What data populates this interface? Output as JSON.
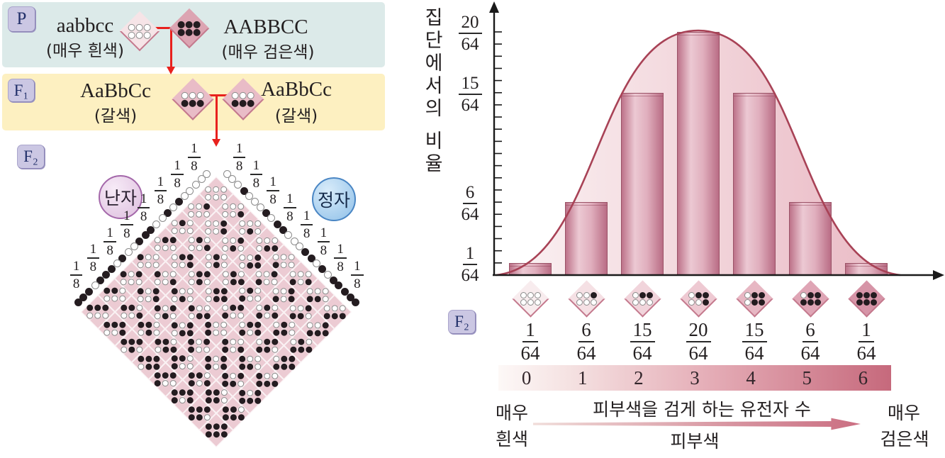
{
  "colors": {
    "band_p": "#dceae9",
    "band_f1": "#fdf0c1",
    "badge_bg": "#cbc7e3",
    "badge_text": "#22306a",
    "red": "#e8211d",
    "cell_bg": "#eccbd3",
    "diamond_edge": "#c4798d",
    "curve_stroke": "#a84256",
    "axis": "#1a1a1a"
  },
  "pedigree": {
    "p_label": "P",
    "f1_label": "F₁",
    "f2_label": "F₂",
    "p": {
      "left_genotype": "aabbcc",
      "left_phenotype": "(매우 흰색)",
      "left_icon_pattern": "000000",
      "left_icon_color": "#f6e4e7",
      "right_genotype": "AABBCC",
      "right_phenotype": "(매우 검은색)",
      "right_icon_pattern": "111111",
      "right_icon_color": "#dca4b2"
    },
    "f1": {
      "left_genotype": "AaBbCc",
      "left_phenotype": "(갈색)",
      "right_genotype": "AaBbCc",
      "right_phenotype": "(갈색)",
      "icon_pattern": "000111",
      "icon_color": "#e9bcc7"
    },
    "egg_label": "난자",
    "sperm_label": "정자",
    "gamete_fraction": {
      "num": "1",
      "den": "8"
    },
    "gametes": [
      [
        0,
        0,
        0
      ],
      [
        0,
        0,
        1
      ],
      [
        0,
        1,
        0
      ],
      [
        0,
        1,
        1
      ],
      [
        1,
        0,
        0
      ],
      [
        1,
        0,
        1
      ],
      [
        1,
        1,
        0
      ],
      [
        1,
        1,
        1
      ]
    ]
  },
  "chart_data": {
    "type": "bar",
    "categories": [
      "0",
      "1",
      "2",
      "3",
      "4",
      "5",
      "6"
    ],
    "values": [
      1,
      6,
      15,
      20,
      15,
      6,
      1
    ],
    "value_unit": "n/64",
    "fraction_labels": [
      "1/64",
      "6/64",
      "15/64",
      "20/64",
      "15/64",
      "6/64",
      "1/64"
    ],
    "title": "",
    "xlabel": "피부색",
    "ylabel": "집단에서의 비율",
    "ylim": [
      0,
      22
    ],
    "yticks_labeled": [
      {
        "num": "20",
        "den": "64",
        "value": 20
      },
      {
        "num": "15",
        "den": "64",
        "value": 15
      },
      {
        "num": "6",
        "den": "64",
        "value": 6
      },
      {
        "num": "1",
        "den": "64",
        "value": 1
      }
    ],
    "minor_ticks_every": 1,
    "overlay": "normal-distribution-curve",
    "legend": "none",
    "grid": "off"
  },
  "chart": {
    "ylabel_group1": "집단에서의",
    "ylabel_group2": "비율"
  },
  "distribution": {
    "f2_label": "F₂",
    "phenotypes": [
      {
        "allele_count": "0",
        "pattern": "000000",
        "color": "#f8ecee",
        "fraction_num": "1",
        "fraction_den": "64"
      },
      {
        "allele_count": "1",
        "pattern": "001000",
        "color": "#f5e0e4",
        "fraction_num": "6",
        "fraction_den": "64"
      },
      {
        "allele_count": "2",
        "pattern": "011000",
        "color": "#f1d4db",
        "fraction_num": "15",
        "fraction_den": "64"
      },
      {
        "allele_count": "3",
        "pattern": "011001",
        "color": "#eec9d2",
        "fraction_num": "20",
        "fraction_den": "64"
      },
      {
        "allele_count": "4",
        "pattern": "011011",
        "color": "#e7b7c3",
        "fraction_num": "15",
        "fraction_den": "64"
      },
      {
        "allele_count": "5",
        "pattern": "011111",
        "color": "#dfa5b5",
        "fraction_num": "6",
        "fraction_den": "64"
      },
      {
        "allele_count": "6",
        "pattern": "111111",
        "color": "#d694a7",
        "fraction_num": "1",
        "fraction_den": "64"
      }
    ]
  },
  "footer": {
    "left_line1": "매우",
    "left_line2": "흰색",
    "axis_title": "피부색을 검게 하는 유전자 수",
    "axis_subtitle": "피부색",
    "right_line1": "매우",
    "right_line2": "검은색"
  }
}
